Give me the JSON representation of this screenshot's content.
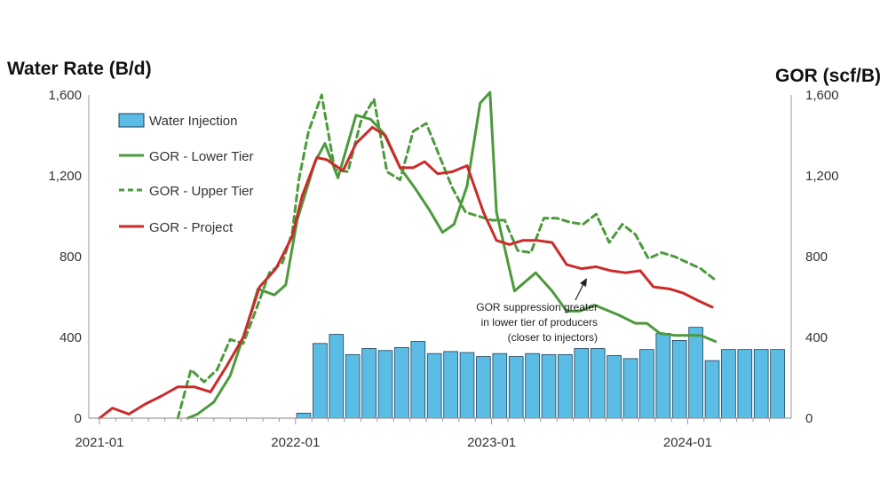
{
  "chart_data": {
    "type": "bar+line",
    "left_axis_title": "Water Rate (B/d)",
    "right_axis_title": "GOR (scf/B)",
    "y_left_ticks": [
      "0",
      "400",
      "800",
      "1,200",
      "1,600"
    ],
    "y_right_ticks": [
      "0",
      "400",
      "800",
      "1,200",
      "1,600"
    ],
    "ylim": [
      0,
      1600
    ],
    "x_ticks": [
      "2021-01",
      "2022-01",
      "2023-01",
      "2024-01"
    ],
    "x_start": "2021-01",
    "x_end": "2024-06",
    "legend": [
      "Water Injection",
      "GOR - Lower Tier",
      "GOR - Upper Tier",
      "GOR - Project"
    ],
    "colors": {
      "bars": "#5bbde4",
      "bar_edge": "#1f3f5a",
      "lower": "#4c9a3c",
      "upper": "#4c9a3c",
      "project": "#cc2a2a",
      "axis": "#999999"
    },
    "annotation": {
      "lines": [
        "GOR suppression greater",
        "in lower tier of producers",
        "(closer to injectors)"
      ],
      "arrow_to": {
        "month": 26,
        "value": 700
      }
    },
    "bars": {
      "name": "Water Injection",
      "months": [
        12,
        13,
        14,
        15,
        16,
        17,
        18,
        19,
        20,
        21,
        22,
        23,
        24,
        25,
        26,
        27,
        28,
        29,
        30,
        31,
        32,
        33,
        34,
        35,
        36,
        37,
        38,
        39,
        40,
        41
      ],
      "values": [
        25,
        370,
        415,
        315,
        345,
        335,
        350,
        380,
        320,
        330,
        325,
        305,
        320,
        305,
        320,
        315,
        315,
        345,
        345,
        310,
        295,
        340,
        420,
        385,
        450,
        285,
        340,
        340,
        340,
        340
      ]
    },
    "series": [
      {
        "name": "GOR - Project",
        "months": [
          0,
          0.8,
          1.8,
          2.8,
          3.8,
          4.8,
          5.8,
          6.8,
          7.8,
          8.8,
          9.8,
          10.8,
          11.8,
          12.4,
          13.3,
          13.9,
          14.9,
          15.7,
          16.7,
          17.5,
          18.4,
          19.2,
          19.9,
          20.7,
          21.6,
          22.5,
          23.5,
          24.3,
          25.1,
          25.9,
          26.8,
          27.7,
          28.6,
          29.5,
          30.4,
          31.3,
          32.2,
          33.1,
          33.9,
          34.9,
          35.7,
          36.7,
          37.5
        ],
        "values": [
          0,
          50,
          20,
          70,
          110,
          155,
          155,
          130,
          260,
          400,
          650,
          740,
          900,
          1100,
          1290,
          1280,
          1225,
          1360,
          1440,
          1400,
          1240,
          1240,
          1270,
          1210,
          1220,
          1250,
          1020,
          880,
          860,
          880,
          880,
          870,
          760,
          740,
          750,
          730,
          720,
          730,
          650,
          640,
          620,
          580,
          550
        ]
      },
      {
        "name": "GOR - Lower Tier",
        "months": [
          5.4,
          6.0,
          7.0,
          8.0,
          9.0,
          9.7,
          10.7,
          11.4,
          12.1,
          13.2,
          13.8,
          14.6,
          15.7,
          16.6,
          17.4,
          18.4,
          19.3,
          20.2,
          21.0,
          21.7,
          22.5,
          23.3,
          23.9,
          24.3,
          25.4,
          26.7,
          27.7,
          28.6,
          29.4,
          30.3,
          30.9,
          31.8,
          32.8,
          33.5,
          34.3,
          35.2,
          35.8,
          36.8,
          37.7
        ],
        "values": [
          0,
          20,
          80,
          210,
          450,
          640,
          610,
          660,
          980,
          1270,
          1360,
          1190,
          1500,
          1480,
          1410,
          1240,
          1140,
          1030,
          920,
          960,
          1150,
          1560,
          1680,
          1020,
          630,
          720,
          630,
          530,
          530,
          560,
          540,
          510,
          470,
          470,
          420,
          410,
          410,
          410,
          380
        ]
      },
      {
        "name": "GOR - Upper Tier",
        "months": [
          4.8,
          5.6,
          6.4,
          7.2,
          8.0,
          8.8,
          9.6,
          10.4,
          11.2,
          11.8,
          12.2,
          12.8,
          13.6,
          14.4,
          15.2,
          16.0,
          16.8,
          17.6,
          18.4,
          19.2,
          20.0,
          20.8,
          21.6,
          22.4,
          23.2,
          24.0,
          24.8,
          25.6,
          26.4,
          27.2,
          28.0,
          28.8,
          29.6,
          30.4,
          31.2,
          32.0,
          32.8,
          33.6,
          34.4,
          35.2,
          36.0,
          36.8,
          37.6
        ],
        "values": [
          0,
          240,
          180,
          240,
          390,
          370,
          540,
          720,
          770,
          920,
          1180,
          1420,
          1600,
          1230,
          1220,
          1470,
          1580,
          1220,
          1180,
          1420,
          1460,
          1300,
          1140,
          1020,
          1000,
          980,
          980,
          830,
          820,
          990,
          990,
          970,
          960,
          1010,
          870,
          960,
          910,
          790,
          820,
          800,
          770,
          740,
          690
        ]
      }
    ]
  }
}
